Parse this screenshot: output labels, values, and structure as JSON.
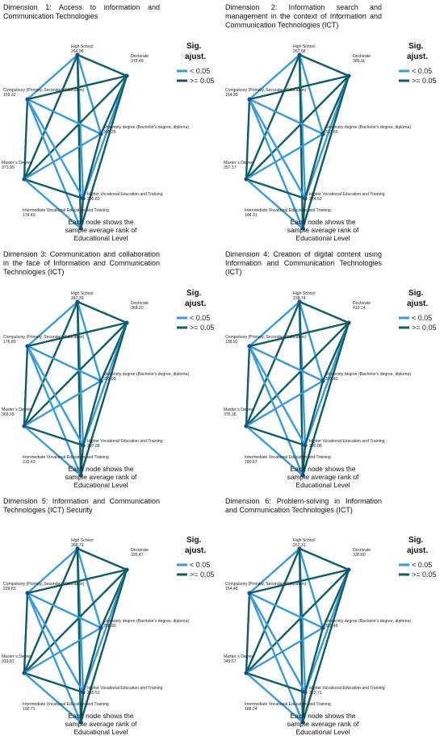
{
  "legend": {
    "title_line1": "Sig.",
    "title_line2": "ajust.",
    "lt": "< 0.05",
    "ge": ">= 0.05"
  },
  "colors": {
    "significant": "#3a9ad9",
    "not_significant": "#0f5d63",
    "node": "#1a4f8c"
  },
  "caption": {
    "line1": "Each node shows the",
    "line2": "sample average rank of",
    "line3": "Educational Level"
  },
  "nodes": {
    "hs": "High School",
    "doc": "Doctorate",
    "comp": "Compulsory (Primary, Secondary Education)",
    "uni": "University degree (Bachelor's degree, diploma)",
    "mas": "Master´s Degree",
    "hve": "Higher Vocational Education and Training",
    "ive": "Intermediate Vocational Education and Training"
  },
  "panels": [
    {
      "title": "Dimension 1: Access to information and Communication Technologies",
      "ranks": {
        "hs": "264.96",
        "doc": "372.49",
        "comp": "159.32",
        "uni": "305.25",
        "mas": "371.99",
        "hve": "295.83",
        "ive": "174.43"
      }
    },
    {
      "title": "Dimension 2: Information search and management in the context of Information and Communication Technologies (ICT)",
      "ranks": {
        "hs": "267.68",
        "doc": "385.11",
        "comp": "164.35",
        "uni": "317.60",
        "mas": "357.17",
        "hve": "274.53",
        "ive": "144.31"
      }
    },
    {
      "title": "Dimension 3: Communication and collaboration in the face of Information and Communication Technologies (ICT)",
      "ranks": {
        "hs": "247.39",
        "doc": "368.20",
        "comp": "176.89",
        "uni": "292.09",
        "mas": "365.99",
        "hve": "297.08",
        "ive": "212.43"
      }
    },
    {
      "title": "Dimension 4: Creation of digital content using Information and Communication Technologies (ICT)",
      "ranks": {
        "hs": "238.74",
        "doc": "419.14",
        "comp": "138.92",
        "uni": "309.43",
        "mas": "375.36",
        "hve": "290.06",
        "ive": "180.97"
      }
    },
    {
      "title": "Dimension 5: Information and Communication Technologies (ICT) Security",
      "ranks": {
        "hs": "268.71",
        "doc": "326.47",
        "comp": "209.83",
        "uni": "298.90",
        "mas": "319.81",
        "hve": "325.51",
        "ive": "192.71"
      }
    },
    {
      "title": "Dimension 6: Problem-solving in Information and Communication Technologies (ICT)",
      "ranks": {
        "hs": "267.31",
        "doc": "335.80",
        "comp": "164.48",
        "uni": "303.49",
        "mas": "349.57",
        "hve": "322.71",
        "ive": "188.24"
      }
    }
  ]
}
